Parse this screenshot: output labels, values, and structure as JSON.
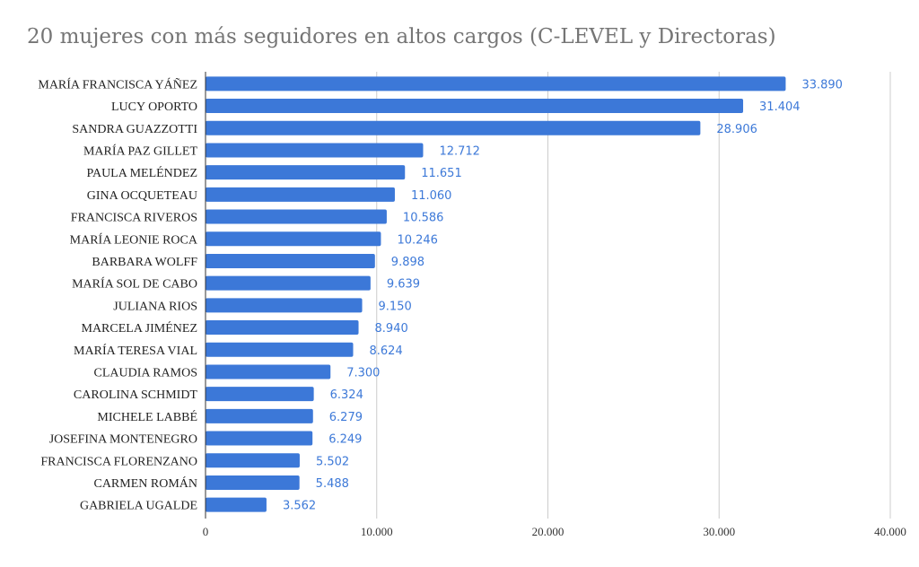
{
  "chart_data": {
    "type": "bar",
    "orientation": "horizontal",
    "title": "20 mujeres con más seguidores en altos cargos (C-LEVEL y Directoras)",
    "xlabel": "",
    "ylabel": "",
    "xlim": [
      0,
      40000
    ],
    "grid": true,
    "bar_color": "#3c78d8",
    "label_color": "#3d79d8",
    "categories": [
      "MARÍA FRANCISCA YÁÑEZ",
      "LUCY OPORTO",
      "SANDRA GUAZZOTTI",
      "MARÍA PAZ GILLET",
      "PAULA MELÉNDEZ",
      "GINA OCQUETEAU",
      "FRANCISCA RIVEROS",
      "MARÍA LEONIE ROCA",
      "BARBARA WOLFF",
      "MARÍA SOL DE CABO",
      "JULIANA RIOS",
      "MARCELA JIMÉNEZ",
      "MARÍA TERESA VIAL",
      "CLAUDIA RAMOS",
      "CAROLINA SCHMIDT",
      "MICHELE LABBÉ",
      "JOSEFINA MONTENEGRO",
      "FRANCISCA FLORENZANO",
      "CARMEN ROMÁN",
      "GABRIELA UGALDE"
    ],
    "values": [
      33890,
      31404,
      28906,
      12712,
      11651,
      11060,
      10586,
      10246,
      9898,
      9639,
      9150,
      8940,
      8624,
      7300,
      6324,
      6279,
      6249,
      5502,
      5488,
      3562
    ],
    "value_labels": [
      "33.890",
      "31.404",
      "28.906",
      "12.712",
      "11.651",
      "11.060",
      "10.586",
      "10.246",
      "9.898",
      "9.639",
      "9.150",
      "8.940",
      "8.624",
      "7.300",
      "6.324",
      "6.279",
      "6.249",
      "5.502",
      "5.488",
      "3.562"
    ],
    "x_ticks": [
      0,
      10000,
      20000,
      30000,
      40000
    ],
    "x_tick_labels": [
      "0",
      "10.000",
      "20.000",
      "30.000",
      "40.000"
    ]
  }
}
